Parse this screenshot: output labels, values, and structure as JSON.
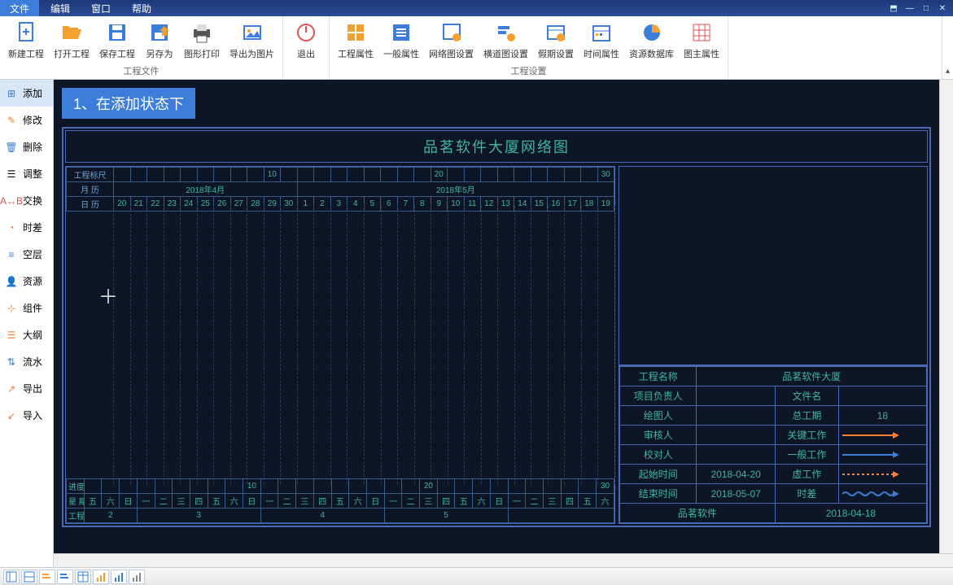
{
  "menu": {
    "file": "文件",
    "edit": "编辑",
    "window": "窗口",
    "help": "帮助"
  },
  "ribbon": {
    "group1_label": "工程文件",
    "group2_label": "工程设置",
    "new_project": "新建工程",
    "open_project": "打开工程",
    "save_project": "保存工程",
    "save_as": "另存为",
    "print": "图形打印",
    "export_image": "导出为图片",
    "exit": "退出",
    "proj_prop": "工程属性",
    "general_prop": "一般属性",
    "net_settings": "网络图设置",
    "gantt_settings": "横道图设置",
    "holiday_settings": "假期设置",
    "time_prop": "时间属性",
    "resource_db": "资源数据库",
    "legend_prop": "图主属性"
  },
  "sidebar": {
    "add": "添加",
    "modify": "修改",
    "delete": "删除",
    "adjust": "调整",
    "swap": "交换",
    "slack": "时差",
    "layer": "空层",
    "resource": "资源",
    "component": "组件",
    "outline": "大纲",
    "flow": "流水",
    "export": "导出",
    "import": "导入"
  },
  "callout": "1、在添加状态下",
  "chart": {
    "title": "品茗软件大厦网络图",
    "row_gcbc": "工程标尺",
    "row_month": "月 历",
    "row_day": "日 历",
    "row_progress": "进度标尺",
    "row_week": "星 期",
    "row_gcweek": "工程周",
    "months": [
      "2018年4月",
      "2018年5月"
    ],
    "scale_10": "10",
    "scale_20": "20",
    "scale_30": "30",
    "days_apr": [
      "20",
      "21",
      "22",
      "23",
      "24",
      "25",
      "26",
      "27",
      "28",
      "29",
      "30"
    ],
    "days_may": [
      "1",
      "2",
      "3",
      "4",
      "5",
      "6",
      "7",
      "8",
      "9",
      "10",
      "11",
      "12",
      "13",
      "14",
      "15",
      "16",
      "17",
      "18",
      "19"
    ],
    "weeks": [
      "五",
      "六",
      "日",
      "一",
      "二",
      "三",
      "四",
      "五",
      "六",
      "日",
      "一",
      "二",
      "三",
      "四",
      "五",
      "六",
      "日",
      "一",
      "二",
      "三",
      "四",
      "五",
      "六",
      "日",
      "一",
      "二",
      "三",
      "四",
      "五",
      "六"
    ],
    "gcweeks": [
      "2",
      "3",
      "4",
      "5"
    ]
  },
  "info": {
    "proj_name_lbl": "工程名称",
    "proj_name": "品茗软件大厦",
    "pm_lbl": "项目负责人",
    "filename_lbl": "文件名",
    "drawer_lbl": "绘图人",
    "total_days_lbl": "总工期",
    "total_days": "18",
    "reviewer_lbl": "审核人",
    "critical_lbl": "关键工作",
    "checker_lbl": "校对人",
    "normal_lbl": "一般工作",
    "start_lbl": "起始时间",
    "start": "2018-04-20",
    "virtual_lbl": "虚工作",
    "end_lbl": "结束时间",
    "end": "2018-05-07",
    "slack_lbl": "时差",
    "company": "品茗软件",
    "date": "2018-04-18"
  },
  "colors": {
    "critical": "#ff7f2a",
    "normal": "#3b7dd8",
    "virtual": "#ff7f2a",
    "slack": "#3b7dd8"
  }
}
